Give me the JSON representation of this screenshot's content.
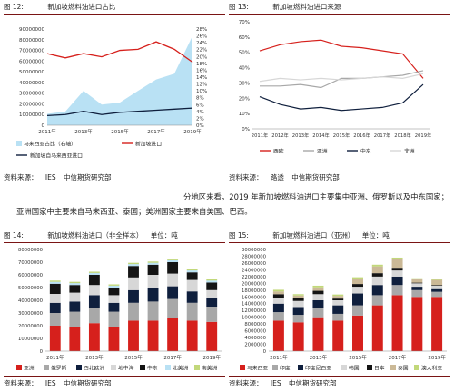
{
  "colors": {
    "red": "#d6201c",
    "navy": "#0f1f3d",
    "lightblue": "#b9e1f4",
    "grey": "#a8a8a8",
    "green": "#79b43c",
    "lightgrey": "#d7d7d7",
    "dark": "#141414",
    "tan": "#cbb997",
    "lime": "#c2d87a",
    "frame": "#7a1414"
  },
  "paragraph": {
    "line1": "分地区来看，2019 年新加坡燃料油进口主要集中亚洲、俄罗斯以及中东国家；",
    "line2": "亚洲国家中主要来自马来西亚、泰国；美洲国家主要来自美国、巴西。"
  },
  "chart_data": [
    {
      "type": "line",
      "fig_no": "图 12:",
      "title": "新加坡燃料油进口占比",
      "source": [
        "资料来源：",
        "IES",
        "中信期货研究部"
      ],
      "y_ticks": [
        "0",
        "10000000",
        "20000000",
        "30000000",
        "40000000",
        "50000000",
        "60000000",
        "70000000",
        "80000000",
        "90000000"
      ],
      "y_range": [
        0,
        90000000
      ],
      "y2_ticks": [
        "0%",
        "2%",
        "4%",
        "6%",
        "8%",
        "10%",
        "12%",
        "14%",
        "16%",
        "18%",
        "20%",
        "22%",
        "24%",
        "26%",
        "28%"
      ],
      "y2_range": [
        0,
        28
      ],
      "x_ticks": [
        "2011年",
        "2013年",
        "2015年",
        "2017年",
        "2019年"
      ],
      "x_tick_index": [
        0,
        2,
        4,
        6,
        8
      ],
      "series": [
        {
          "name": "马来西亚占比（右轴）",
          "axis": "right",
          "kind": "area",
          "color": "lightblue",
          "values": [
            3.3,
            4,
            10,
            6,
            6.6,
            10,
            13.3,
            15,
            26
          ]
        },
        {
          "name": "新加坡进口",
          "axis": "left",
          "kind": "line",
          "color": "red",
          "values": [
            67000000,
            63000000,
            67000000,
            64000000,
            70000000,
            71000000,
            78000000,
            71000000,
            59000000
          ]
        },
        {
          "name": "新加坡自马来西亚进口",
          "axis": "left",
          "kind": "line",
          "color": "navy",
          "values": [
            9000000,
            10000000,
            13000000,
            10000000,
            12000000,
            13000000,
            14000000,
            15000000,
            16000000
          ]
        }
      ]
    },
    {
      "type": "line",
      "fig_no": "图 13:",
      "title": "新加坡燃料油进口来源",
      "source": [
        "资料来源：",
        "路透",
        "中信期货研究部"
      ],
      "y_ticks": [
        "0%",
        "10%",
        "20%",
        "30%",
        "40%",
        "50%",
        "60%",
        "70%"
      ],
      "y_range": [
        0,
        70
      ],
      "x_ticks": [
        "2011年",
        "2012年",
        "2013年",
        "2014年",
        "2015年",
        "2016年",
        "2017年",
        "2018年",
        "2019年"
      ],
      "series": [
        {
          "name": "西欧",
          "color": "red",
          "values": [
            51,
            55,
            57,
            58,
            54,
            53,
            51,
            49,
            33
          ]
        },
        {
          "name": "亚洲",
          "color": "grey",
          "values": [
            28,
            28,
            29,
            27,
            33,
            33,
            34,
            35,
            38
          ]
        },
        {
          "name": "中东",
          "color": "navy",
          "values": [
            21,
            16,
            13,
            14,
            12,
            13,
            14,
            17,
            29
          ]
        },
        {
          "name": "非洲",
          "color": "lightgrey",
          "values": [
            31,
            33,
            32,
            33,
            32,
            33,
            34,
            33,
            36
          ]
        }
      ]
    },
    {
      "type": "bar",
      "stacked": true,
      "fig_no": "图 14:",
      "title": "新加坡燃料油进口（非全样本）",
      "unit": "单位：吨",
      "source": [
        "资料来源：",
        "IES",
        "中信期货研究部"
      ],
      "y_ticks": [
        "0",
        "10000000",
        "20000000",
        "30000000",
        "40000000",
        "50000000",
        "60000000",
        "70000000",
        "80000000"
      ],
      "y_range": [
        0,
        80000000
      ],
      "x_ticks": [
        "2011年",
        "2013年",
        "2015年",
        "2017年",
        "2019年"
      ],
      "x_tick_index": [
        0,
        2,
        4,
        6,
        8
      ],
      "series": [
        {
          "name": "亚洲",
          "color": "red",
          "values": [
            20000000,
            19000000,
            22000000,
            19000000,
            24000000,
            24000000,
            26000000,
            24000000,
            23000000
          ]
        },
        {
          "name": "俄罗斯",
          "color": "grey",
          "values": [
            10000000,
            12000000,
            12000000,
            12000000,
            14000000,
            15000000,
            15000000,
            14000000,
            12000000
          ]
        },
        {
          "name": "西北欧洲",
          "color": "navy",
          "values": [
            8000000,
            8000000,
            10000000,
            7000000,
            10000000,
            11000000,
            10000000,
            9000000,
            7000000
          ]
        },
        {
          "name": "地中海",
          "color": "lightgrey",
          "values": [
            7000000,
            7000000,
            8000000,
            6000000,
            10000000,
            10000000,
            10000000,
            9000000,
            6000000
          ]
        },
        {
          "name": "中东",
          "color": "dark",
          "values": [
            8000000,
            6000000,
            8000000,
            6000000,
            9000000,
            8000000,
            9000000,
            6000000,
            6000000
          ]
        },
        {
          "name": "北美洲",
          "color": "lightblue",
          "values": [
            1500000,
            1500000,
            1500000,
            1500000,
            1500000,
            1500000,
            1500000,
            1500000,
            1500000
          ]
        },
        {
          "name": "南美洲",
          "color": "lime",
          "values": [
            1000000,
            1000000,
            1000000,
            1000000,
            1000000,
            1000000,
            1000000,
            1000000,
            1000000
          ]
        }
      ]
    },
    {
      "type": "bar",
      "stacked": true,
      "fig_no": "图 15:",
      "title": "新加坡燃料油进口（亚洲）",
      "unit": "单位：吨",
      "source": [
        "资料来源：",
        "IES",
        "中信期货研究部"
      ],
      "y_ticks": [
        "0",
        "2000000",
        "4000000",
        "6000000",
        "8000000",
        "10000000",
        "12000000",
        "14000000",
        "16000000",
        "18000000",
        "20000000",
        "22000000",
        "24000000",
        "26000000",
        "28000000",
        "30000000"
      ],
      "y_range": [
        0,
        30000000
      ],
      "x_ticks": [
        "2011年",
        "2013年",
        "2015年",
        "2017年",
        "2019年"
      ],
      "x_tick_index": [
        0,
        2,
        4,
        6,
        8
      ],
      "series": [
        {
          "name": "马来西亚",
          "color": "red",
          "values": [
            9000000,
            8500000,
            10000000,
            9000000,
            10500000,
            13500000,
            16500000,
            16000000,
            16000000
          ]
        },
        {
          "name": "印度",
          "color": "grey",
          "values": [
            2500000,
            2200000,
            2600000,
            2000000,
            3000000,
            3000000,
            3000000,
            2000000,
            1500000
          ]
        },
        {
          "name": "印度尼西亚",
          "color": "navy",
          "values": [
            2500000,
            2300000,
            2400000,
            2500000,
            3500000,
            3000000,
            2500000,
            1000000,
            800000
          ]
        },
        {
          "name": "韩国",
          "color": "lightgrey",
          "values": [
            1800000,
            1800000,
            1800000,
            1500000,
            2000000,
            2500000,
            1800000,
            1000000,
            1000000
          ]
        },
        {
          "name": "日本",
          "color": "dark",
          "values": [
            1000000,
            800000,
            1000000,
            500000,
            800000,
            1000000,
            800000,
            200000,
            200000
          ]
        },
        {
          "name": "泰国",
          "color": "tan",
          "values": [
            800000,
            800000,
            1000000,
            800000,
            1500000,
            2000000,
            2500000,
            1000000,
            1500000
          ]
        },
        {
          "name": "澳大利亚",
          "color": "lime",
          "values": [
            500000,
            400000,
            500000,
            400000,
            500000,
            500000,
            500000,
            300000,
            300000
          ]
        }
      ]
    }
  ]
}
